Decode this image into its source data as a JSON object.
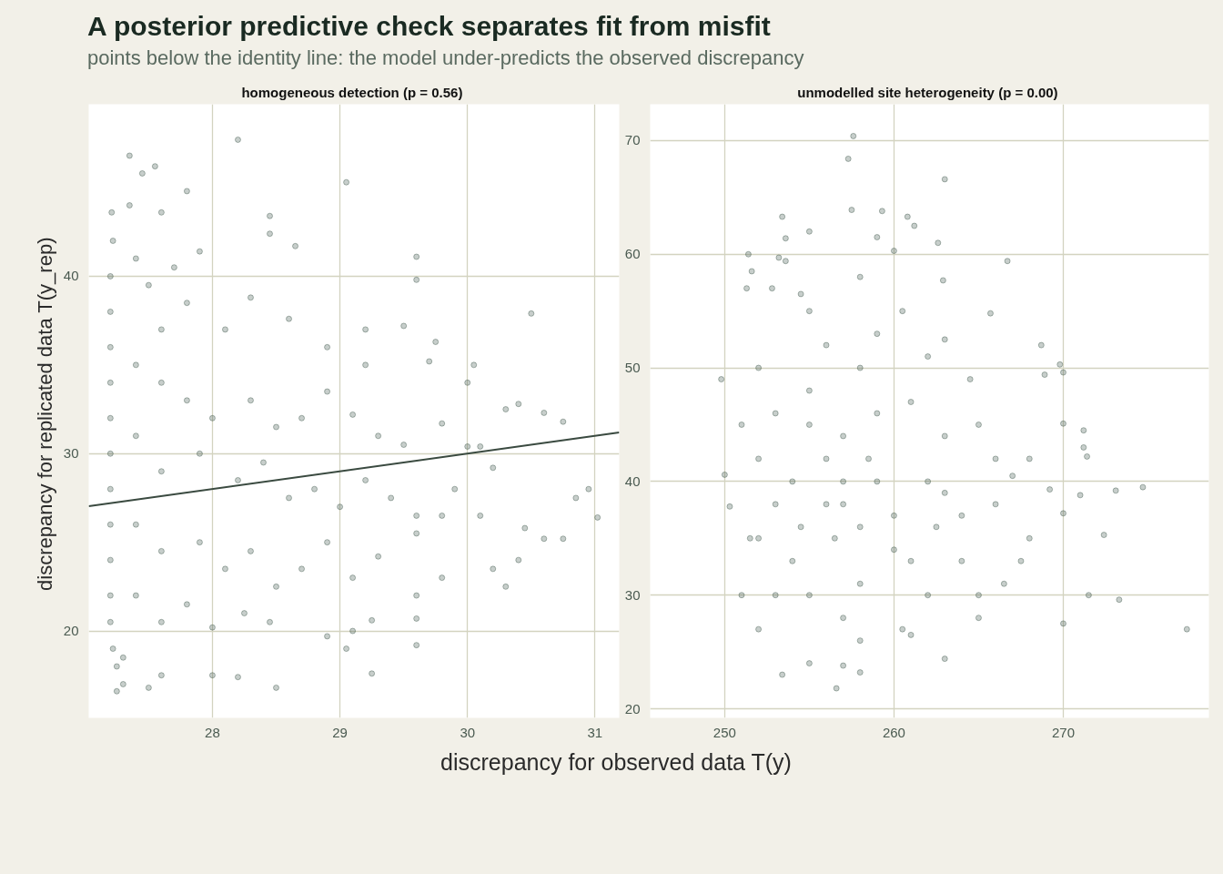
{
  "chart_data": [
    {
      "type": "scatter",
      "title": "homogeneous detection  (p = 0.56)",
      "annotations": [
        "A posterior predictive check separates fit from misfit",
        "points below the identity line: the model under-predicts the observed discrepancy"
      ],
      "xlabel": "discrepancy for observed data  T(y)",
      "ylabel": "discrepancy for replicated data  T(y_rep)",
      "xlim": [
        27.03,
        31.19
      ],
      "ylim": [
        15.1,
        49.7
      ],
      "xticks": [
        28,
        29,
        30,
        31
      ],
      "yticks": [
        20,
        30,
        40
      ],
      "grid": true,
      "series": [
        {
          "color": "#1f3d2e",
          "marker": "circle",
          "x": [
            27.21,
            27.22,
            27.2,
            27.2,
            27.2,
            27.2,
            27.2,
            27.2,
            27.2,
            27.2,
            27.2,
            27.2,
            27.2,
            27.22,
            27.25,
            27.3,
            27.35,
            27.45,
            27.55,
            27.35,
            27.8,
            28.2,
            29.05,
            27.6,
            28.45,
            28.45,
            28.65,
            29.6,
            29.6,
            30.5,
            27.4,
            27.5,
            27.7,
            27.9,
            27.6,
            27.8,
            28.1,
            28.3,
            28.6,
            28.9,
            29.2,
            29.5,
            29.75,
            29.2,
            29.7,
            30.0,
            30.05,
            30.4,
            30.6,
            30.75,
            27.4,
            27.6,
            27.8,
            28.0,
            28.3,
            28.5,
            28.7,
            28.9,
            29.1,
            29.3,
            29.5,
            29.8,
            30.0,
            30.1,
            30.3,
            27.4,
            27.6,
            27.9,
            28.2,
            28.4,
            28.6,
            28.8,
            29.0,
            29.2,
            29.4,
            29.6,
            29.9,
            30.2,
            30.45,
            30.6,
            30.75,
            30.85,
            30.95,
            31.02,
            30.1,
            30.2,
            30.3,
            30.4,
            27.4,
            27.6,
            27.9,
            28.1,
            28.3,
            28.5,
            28.7,
            28.9,
            29.1,
            29.3,
            29.6,
            29.8,
            29.8,
            27.4,
            27.6,
            27.8,
            28.0,
            28.25,
            28.45,
            28.9,
            29.05,
            29.1,
            29.25,
            29.6,
            29.6,
            29.6,
            28.0,
            28.2,
            28.5,
            29.25,
            27.5,
            27.6,
            27.3,
            27.25
          ],
          "values": [
            43.6,
            42,
            40,
            38,
            36,
            34,
            32,
            30,
            28,
            26,
            24,
            22,
            20.5,
            19,
            18,
            17,
            46.8,
            45.8,
            46.2,
            44,
            44.8,
            47.7,
            45.3,
            43.6,
            43.4,
            42.4,
            41.7,
            41.1,
            39.8,
            37.9,
            41,
            39.5,
            40.5,
            41.4,
            37,
            38.5,
            37,
            38.8,
            37.6,
            36,
            37,
            37.2,
            36.3,
            35,
            35.2,
            34,
            35,
            32.8,
            32.3,
            31.8,
            35,
            34,
            33,
            32,
            33,
            31.5,
            32,
            33.5,
            32.2,
            31,
            30.5,
            31.7,
            30.4,
            30.4,
            32.5,
            31,
            29,
            30,
            28.5,
            29.5,
            27.5,
            28,
            27,
            28.5,
            27.5,
            26.5,
            28,
            29.2,
            25.8,
            25.2,
            25.2,
            27.5,
            28,
            26.4,
            26.5,
            23.5,
            22.5,
            24,
            26,
            24.5,
            25,
            23.5,
            24.5,
            22.5,
            23.5,
            25,
            23,
            24.2,
            25.5,
            26.5,
            23,
            22,
            20.5,
            21.5,
            20.2,
            21,
            20.5,
            19.7,
            19,
            20,
            20.6,
            22,
            20.7,
            19.2,
            17.5,
            17.4,
            16.8,
            17.6,
            16.8,
            17.5,
            18.5,
            16.6
          ]
        },
        {
          "type": "line",
          "color": "#3a4a40",
          "x": [
            27.03,
            31.19
          ],
          "values": [
            27.03,
            31.19
          ]
        }
      ]
    },
    {
      "type": "scatter",
      "title": "unmodelled site heterogeneity  (p = 0.00)",
      "xlim": [
        245.6,
        278.6
      ],
      "ylim": [
        19.2,
        73.2
      ],
      "xticks": [
        250,
        260,
        270
      ],
      "yticks": [
        20,
        30,
        40,
        50,
        60,
        70
      ],
      "grid": true,
      "series": [
        {
          "color": "#1f3d2e",
          "marker": "circle",
          "x": [
            257.6,
            257.3,
            263,
            257.5,
            259.3,
            260.8,
            261.2,
            253.4,
            253.6,
            255,
            259,
            262.6,
            260,
            251.4,
            253.2,
            253.6,
            266.7,
            251.6,
            258,
            262.9,
            251.3,
            252.8,
            254.5,
            265.7,
            268.7,
            249.8,
            250,
            250.3,
            251.5,
            251,
            252,
            253.4,
            255,
            256.6,
            257,
            258,
            263,
            260.5,
            265,
            270,
            271.5,
            273.3,
            277.3,
            272.4,
            271,
            273.1,
            274.7,
            271.2,
            271.4,
            271.2,
            269.8,
            270,
            268.9,
            270,
            269.2,
            270,
            267,
            268,
            267.5,
            266.5,
            265,
            255,
            256,
            257,
            258,
            256.5,
            259,
            255,
            258,
            261,
            263,
            262,
            264,
            261,
            258,
            254,
            253,
            252,
            253,
            256,
            259,
            262,
            265,
            266,
            264,
            257,
            253,
            260.5,
            255,
            263,
            252,
            251,
            252,
            254,
            257,
            260,
            262,
            255,
            258,
            261,
            264.5,
            266,
            268,
            257,
            256,
            258.5,
            254.5,
            260,
            263,
            259,
            262.5
          ],
          "values": [
            70.4,
            68.4,
            66.6,
            63.9,
            63.8,
            63.3,
            62.5,
            63.3,
            61.4,
            62,
            61.5,
            61,
            60.3,
            60,
            59.7,
            59.4,
            59.4,
            58.5,
            58,
            57.7,
            57,
            57,
            56.5,
            54.8,
            52,
            49,
            40.6,
            37.8,
            35,
            30,
            27,
            23,
            24,
            21.8,
            23.8,
            23.2,
            24.4,
            27,
            28,
            27.5,
            30,
            29.6,
            27,
            35.3,
            38.8,
            39.2,
            39.5,
            43,
            42.2,
            44.5,
            50.3,
            49.6,
            49.4,
            45.1,
            39.3,
            37.2,
            40.5,
            35,
            33,
            31,
            30,
            45,
            42,
            38,
            36,
            35,
            40,
            48,
            50,
            47,
            44,
            40,
            37,
            33,
            31,
            33,
            38,
            42,
            46,
            52,
            53,
            51,
            45,
            42,
            33,
            28,
            30,
            55,
            55,
            52.5,
            50,
            45,
            35,
            40,
            44,
            37,
            30,
            30,
            26,
            26.5,
            49,
            38,
            42,
            40,
            38,
            42,
            36,
            34,
            39,
            46,
            36
          ]
        }
      ]
    }
  ]
}
